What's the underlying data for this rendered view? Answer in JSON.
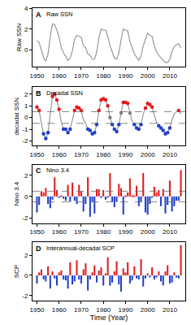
{
  "chart_data": [
    {
      "type": "line",
      "label": "A",
      "title": "Raw SSN",
      "ylabel": "Raw SSN",
      "x": [
        1950,
        1951,
        1952,
        1953,
        1954,
        1955,
        1956,
        1957,
        1958,
        1959,
        1960,
        1961,
        1962,
        1963,
        1964,
        1965,
        1966,
        1967,
        1968,
        1969,
        1970,
        1971,
        1972,
        1973,
        1974,
        1975,
        1976,
        1977,
        1978,
        1979,
        1980,
        1981,
        1982,
        1983,
        1984,
        1985,
        1986,
        1987,
        1988,
        1989,
        1990,
        1991,
        1992,
        1993,
        1994,
        1995,
        1996,
        1997,
        1998,
        1999,
        2000,
        2001,
        2002,
        2003,
        2004,
        2005,
        2006,
        2007,
        2008,
        2009,
        2010,
        2011,
        2012,
        2013,
        2014,
        2015
      ],
      "values": [
        0.9,
        0.7,
        0.0,
        -0.7,
        -1.1,
        -0.4,
        1.3,
        2.5,
        2.4,
        1.9,
        1.2,
        0.2,
        -0.3,
        -0.6,
        -1.0,
        -0.8,
        -0.1,
        1.0,
        1.4,
        1.3,
        1.2,
        0.4,
        0.2,
        -0.4,
        -0.5,
        -0.9,
        -0.9,
        -0.2,
        1.2,
        2.0,
        1.9,
        1.9,
        1.3,
        0.4,
        -0.3,
        -0.8,
        -0.9,
        -0.3,
        1.0,
        2.0,
        1.9,
        1.8,
        0.8,
        0.1,
        -0.4,
        -0.7,
        -1.0,
        -0.6,
        0.4,
        1.0,
        1.6,
        1.4,
        1.3,
        0.4,
        -0.2,
        -0.5,
        -0.8,
        -1.0,
        -1.2,
        -1.2,
        -0.9,
        -0.1,
        0.3,
        0.5,
        0.6,
        0.2
      ],
      "color": "#999999",
      "xlim": [
        1948,
        2017
      ],
      "xticks": [
        1950,
        1960,
        1970,
        1980,
        1990,
        2000,
        2010
      ],
      "ylim": [
        -1.6,
        4
      ],
      "yticks": [
        0,
        2,
        4
      ]
    },
    {
      "type": "line",
      "label": "B",
      "title": "Decadal SSN",
      "ylabel": "decadal SSN",
      "x": [
        1950,
        1951,
        1952,
        1953,
        1954,
        1955,
        1956,
        1957,
        1958,
        1959,
        1960,
        1961,
        1962,
        1963,
        1964,
        1965,
        1966,
        1967,
        1968,
        1969,
        1970,
        1971,
        1972,
        1973,
        1974,
        1975,
        1976,
        1977,
        1978,
        1979,
        1980,
        1981,
        1982,
        1983,
        1984,
        1985,
        1986,
        1987,
        1988,
        1989,
        1990,
        1991,
        1992,
        1993,
        1994,
        1995,
        1996,
        1997,
        1998,
        1999,
        2000,
        2001,
        2002,
        2003,
        2004,
        2005,
        2006,
        2007,
        2008,
        2009,
        2010,
        2011,
        2012,
        2013,
        2014,
        2015
      ],
      "series": [
        {
          "type": "line",
          "color": "#999999",
          "values": [
            0.9,
            0.6,
            -0.5,
            -1.4,
            -1.8,
            -1.3,
            0.3,
            1.8,
            2.0,
            1.5,
            0.7,
            -0.4,
            -1.0,
            -1.0,
            -1.3,
            -1.0,
            -0.2,
            0.6,
            0.9,
            0.8,
            0.6,
            -0.2,
            -0.5,
            -1.0,
            -1.1,
            -1.4,
            -1.3,
            -0.6,
            0.6,
            1.5,
            1.6,
            1.5,
            1.0,
            0.0,
            -0.6,
            -1.0,
            -1.2,
            -0.6,
            0.4,
            1.3,
            1.3,
            1.2,
            0.4,
            -0.3,
            -0.6,
            -0.9,
            -1.0,
            -0.6,
            0.3,
            0.8,
            1.2,
            1.1,
            0.9,
            0.2,
            -0.4,
            -0.7,
            -0.9,
            -1.1,
            -1.4,
            -1.3,
            -0.9,
            -0.2,
            0.3,
            0.5,
            0.6,
            0.3
          ]
        },
        {
          "type": "scatter",
          "marker": "circle",
          "values": [
            0.9,
            0.6,
            null,
            -1.4,
            -1.8,
            -1.3,
            null,
            1.8,
            2.0,
            1.5,
            0.7,
            null,
            -1.0,
            -1.0,
            -1.3,
            -1.0,
            null,
            0.6,
            0.9,
            0.8,
            0.6,
            null,
            null,
            -1.0,
            -1.1,
            -1.4,
            -1.3,
            -0.6,
            0.6,
            1.5,
            1.6,
            1.5,
            1.0,
            0.0,
            -0.6,
            -1.0,
            -1.2,
            -0.6,
            0.4,
            1.3,
            1.3,
            1.2,
            0.4,
            null,
            -0.6,
            -0.9,
            -1.0,
            -0.6,
            null,
            0.8,
            1.2,
            1.1,
            0.9,
            null,
            null,
            -0.7,
            -0.9,
            -1.1,
            -1.4,
            -1.3,
            -0.9,
            null,
            null,
            null,
            0.6,
            null
          ],
          "colors": [
            "#e31a1c",
            "#e31a1c",
            null,
            "#2140c8",
            "#2140c8",
            "#2140c8",
            null,
            "#e31a1c",
            "#e31a1c",
            "#e31a1c",
            "#e31a1c",
            null,
            "#2140c8",
            "#2140c8",
            "#2140c8",
            "#2140c8",
            null,
            "#e31a1c",
            "#e31a1c",
            "#e31a1c",
            "#e31a1c",
            null,
            null,
            "#2140c8",
            "#2140c8",
            "#2140c8",
            "#2140c8",
            "#2140c8",
            "#e31a1c",
            "#e31a1c",
            "#e31a1c",
            "#e31a1c",
            "#e31a1c",
            "#808080",
            "#2140c8",
            "#2140c8",
            "#2140c8",
            "#2140c8",
            "#808080",
            "#e31a1c",
            "#e31a1c",
            "#e31a1c",
            "#808080",
            null,
            "#2140c8",
            "#2140c8",
            "#2140c8",
            "#2140c8",
            null,
            "#e31a1c",
            "#e31a1c",
            "#e31a1c",
            "#e31a1c",
            null,
            null,
            "#2140c8",
            "#2140c8",
            "#2140c8",
            "#2140c8",
            "#2140c8",
            "#2140c8",
            null,
            null,
            null,
            "#e31a1c",
            null
          ]
        }
      ],
      "hlines": [
        0.5,
        -0.5
      ],
      "xlim": [
        1948,
        2017
      ],
      "xticks": [
        1950,
        1960,
        1970,
        1980,
        1990,
        2000,
        2010
      ],
      "ylim": [
        -2.4,
        2.6
      ],
      "yticks": [
        -2,
        -1,
        0,
        1,
        2
      ]
    },
    {
      "type": "bar",
      "label": "C",
      "title": "Nino 3.4",
      "ylabel": "Nino 3.4",
      "x": [
        1950,
        1951,
        1952,
        1953,
        1954,
        1955,
        1956,
        1957,
        1958,
        1959,
        1960,
        1961,
        1962,
        1963,
        1964,
        1965,
        1966,
        1967,
        1968,
        1969,
        1970,
        1971,
        1972,
        1973,
        1974,
        1975,
        1976,
        1977,
        1978,
        1979,
        1980,
        1981,
        1982,
        1983,
        1984,
        1985,
        1986,
        1987,
        1988,
        1989,
        1990,
        1991,
        1992,
        1993,
        1994,
        1995,
        1996,
        1997,
        1998,
        1999,
        2000,
        2001,
        2002,
        2003,
        2004,
        2005,
        2006,
        2007,
        2008,
        2009,
        2010,
        2011,
        2012,
        2013,
        2014,
        2015
      ],
      "values": [
        -1.5,
        -0.8,
        0.5,
        0.4,
        0.8,
        -0.7,
        -1.1,
        -0.3,
        1.8,
        0.6,
        -0.1,
        0.1,
        -0.2,
        -0.4,
        1.1,
        -0.5,
        1.3,
        -0.4,
        -0.7,
        1.1,
        0.5,
        -1.4,
        -0.7,
        1.8,
        -1.9,
        -0.5,
        -1.6,
        0.7,
        0.7,
        -0.1,
        0.6,
        -0.3,
        -0.1,
        2.2,
        -0.5,
        -1.0,
        -0.5,
        1.2,
        0.8,
        -1.7,
        0.1,
        0.4,
        1.7,
        0.1,
        0.1,
        1.0,
        -0.9,
        -0.5,
        2.2,
        -1.5,
        -1.7,
        -0.7,
        -0.1,
        0.9,
        0.4,
        0.6,
        -0.9,
        0.7,
        -1.6,
        -0.8,
        1.5,
        -1.4,
        -0.9,
        -0.4,
        -0.4,
        2.5
      ],
      "colors": [
        "#2140c8",
        "#2140c8",
        "#e31a1c",
        "#e31a1c",
        "#e31a1c",
        "#2140c8",
        "#2140c8",
        "#2140c8",
        "#e31a1c",
        "#e31a1c",
        "#2140c8",
        "#e31a1c",
        "#2140c8",
        "#2140c8",
        "#e31a1c",
        "#2140c8",
        "#e31a1c",
        "#2140c8",
        "#2140c8",
        "#e31a1c",
        "#e31a1c",
        "#2140c8",
        "#2140c8",
        "#e31a1c",
        "#2140c8",
        "#2140c8",
        "#2140c8",
        "#e31a1c",
        "#e31a1c",
        "#2140c8",
        "#e31a1c",
        "#2140c8",
        "#2140c8",
        "#e31a1c",
        "#2140c8",
        "#2140c8",
        "#2140c8",
        "#e31a1c",
        "#e31a1c",
        "#2140c8",
        "#e31a1c",
        "#e31a1c",
        "#e31a1c",
        "#e31a1c",
        "#e31a1c",
        "#e31a1c",
        "#2140c8",
        "#2140c8",
        "#e31a1c",
        "#2140c8",
        "#2140c8",
        "#2140c8",
        "#2140c8",
        "#e31a1c",
        "#e31a1c",
        "#e31a1c",
        "#2140c8",
        "#e31a1c",
        "#2140c8",
        "#2140c8",
        "#e31a1c",
        "#2140c8",
        "#2140c8",
        "#2140c8",
        "#2140c8",
        "#e31a1c"
      ],
      "hlines": [
        0.5,
        -0.5
      ],
      "xlim": [
        1948,
        2017
      ],
      "xticks": [
        1950,
        1960,
        1970,
        1980,
        1990,
        2000,
        2010
      ],
      "ylim": [
        -2.5,
        3
      ],
      "yticks": [
        -2,
        0,
        2
      ]
    },
    {
      "type": "bar",
      "label": "D",
      "title": "Interannual-decadal SCP",
      "ylabel": "SCP",
      "xlabel": "Time (Year)",
      "x": [
        1950,
        1951,
        1952,
        1953,
        1954,
        1955,
        1956,
        1957,
        1958,
        1959,
        1960,
        1961,
        1962,
        1963,
        1964,
        1965,
        1966,
        1967,
        1968,
        1969,
        1970,
        1971,
        1972,
        1973,
        1974,
        1975,
        1976,
        1977,
        1978,
        1979,
        1980,
        1981,
        1982,
        1983,
        1984,
        1985,
        1986,
        1987,
        1988,
        1989,
        1990,
        1991,
        1992,
        1993,
        1994,
        1995,
        1996,
        1997,
        1998,
        1999,
        2000,
        2001,
        2002,
        2003,
        2004,
        2005,
        2006,
        2007,
        2008,
        2009,
        2010,
        2011,
        2012,
        2013,
        2014,
        2015
      ],
      "values": [
        -0.8,
        0.3,
        0.6,
        -0.4,
        -0.6,
        0.9,
        -1.3,
        0.4,
        -0.3,
        -1.0,
        0.3,
        0.5,
        -0.4,
        -0.5,
        -1.3,
        1.3,
        -0.9,
        -0.6,
        1.5,
        -0.4,
        -0.8,
        0.6,
        1.2,
        -1.5,
        -0.4,
        0.3,
        1.0,
        -0.7,
        0.5,
        0.8,
        -1.0,
        0.2,
        1.8,
        -1.0,
        -0.7,
        0.4,
        1.4,
        -0.9,
        -1.6,
        0.7,
        0.3,
        1.3,
        -0.8,
        -0.5,
        0.9,
        -0.3,
        -0.4,
        1.6,
        -1.1,
        -0.3,
        0.2,
        -0.2,
        0.8,
        -0.4,
        -0.2,
        0.4,
        -0.6,
        -1.0,
        0.4,
        1.0,
        -0.8,
        -0.7,
        0.3,
        -0.2,
        -0.3,
        3.0
      ],
      "colors": [
        "#2140c8",
        "#e31a1c",
        "#e31a1c",
        "#2140c8",
        "#2140c8",
        "#e31a1c",
        "#2140c8",
        "#e31a1c",
        "#2140c8",
        "#2140c8",
        "#e31a1c",
        "#e31a1c",
        "#2140c8",
        "#2140c8",
        "#2140c8",
        "#e31a1c",
        "#2140c8",
        "#2140c8",
        "#e31a1c",
        "#2140c8",
        "#2140c8",
        "#e31a1c",
        "#e31a1c",
        "#2140c8",
        "#2140c8",
        "#e31a1c",
        "#e31a1c",
        "#2140c8",
        "#e31a1c",
        "#e31a1c",
        "#2140c8",
        "#e31a1c",
        "#e31a1c",
        "#2140c8",
        "#2140c8",
        "#e31a1c",
        "#e31a1c",
        "#2140c8",
        "#2140c8",
        "#e31a1c",
        "#e31a1c",
        "#e31a1c",
        "#2140c8",
        "#2140c8",
        "#e31a1c",
        "#2140c8",
        "#2140c8",
        "#e31a1c",
        "#2140c8",
        "#2140c8",
        "#e31a1c",
        "#2140c8",
        "#e31a1c",
        "#2140c8",
        "#2140c8",
        "#e31a1c",
        "#2140c8",
        "#2140c8",
        "#e31a1c",
        "#e31a1c",
        "#2140c8",
        "#2140c8",
        "#e31a1c",
        "#2140c8",
        "#2140c8",
        "#e31a1c"
      ],
      "xlim": [
        1948,
        2017
      ],
      "xticks": [
        1950,
        1960,
        1970,
        1980,
        1990,
        2000,
        2010
      ],
      "ylim": [
        -2.5,
        3.3
      ],
      "yticks": [
        -2,
        0,
        2
      ]
    }
  ]
}
